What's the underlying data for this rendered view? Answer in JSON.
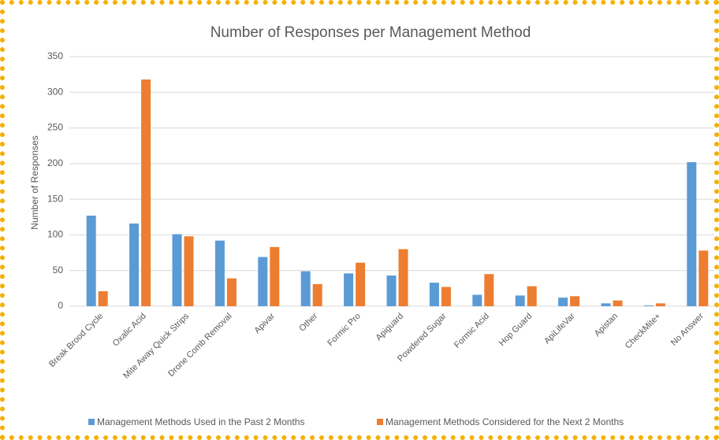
{
  "chart_data": {
    "type": "bar",
    "title": "Number of Responses per Management Method",
    "y_label": "Number of Responses",
    "categories": [
      "Break Brood Cycle",
      "Oxalic Acid",
      "Mite Away Quick Strips",
      "Drone Comb Removal",
      "Apivar",
      "Other",
      "Formic Pro",
      "Apiguard",
      "Powdered Sugar",
      "Formic Acid",
      "Hop Guard",
      "ApiLifeVar",
      "Apistan",
      "CheckMite+",
      "No Answer"
    ],
    "series": [
      {
        "name": "Management Methods Used in the Past 2 Months",
        "color": "#5b9bd5",
        "values": [
          127,
          116,
          101,
          92,
          69,
          49,
          46,
          43,
          33,
          16,
          15,
          12,
          4,
          1,
          202
        ]
      },
      {
        "name": "Management Methods Considered for the Next 2 Months",
        "color": "#ed7d31",
        "values": [
          21,
          318,
          98,
          39,
          83,
          31,
          61,
          80,
          27,
          45,
          28,
          14,
          8,
          4,
          78
        ]
      }
    ],
    "ylim": [
      0,
      350
    ],
    "yticks": [
      0,
      50,
      100,
      150,
      200,
      250,
      300,
      350
    ],
    "grid": true,
    "legend": "bottom"
  }
}
